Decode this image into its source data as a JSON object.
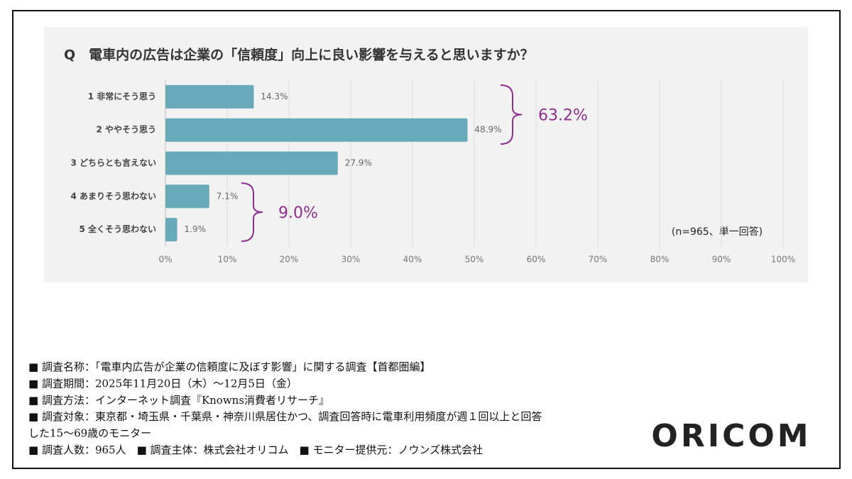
{
  "chart_data": {
    "type": "bar",
    "orientation": "horizontal",
    "title": "Q　電車内の広告は企業の「信頼度」向上に良い影響を与えると思いますか？",
    "categories": [
      "1 非常にそう思う",
      "2 ややそう思う",
      "3 どちらとも言えない",
      "4 あまりそう思わない",
      "5 全くそう思わない"
    ],
    "values": [
      14.3,
      48.9,
      27.9,
      7.1,
      1.9
    ],
    "value_labels": [
      "14.3%",
      "48.9%",
      "27.9%",
      "7.1%",
      "1.9%"
    ],
    "color": "#67aab9",
    "xlim": [
      0,
      100
    ],
    "xticks": [
      {
        "value": 0,
        "label": "0%"
      },
      {
        "value": 10,
        "label": "10%"
      },
      {
        "value": 20,
        "label": "20%"
      },
      {
        "value": 30,
        "label": "30%"
      },
      {
        "value": 40,
        "label": "40%"
      },
      {
        "value": 50,
        "label": "50%"
      },
      {
        "value": 60,
        "label": "60%"
      },
      {
        "value": 70,
        "label": "70%"
      },
      {
        "value": 80,
        "label": "80%"
      },
      {
        "value": 90,
        "label": "90%"
      },
      {
        "value": 100,
        "label": "100%"
      }
    ],
    "grid": true,
    "annotations": [
      "63.2%",
      "9.0%"
    ],
    "annotation_color": "#8e2f8e",
    "note": "(n=965、単一回答)"
  },
  "footer": {
    "lines": [
      "■ 調査名称：「電車内広告が企業の信頼度に及ぼす影響」に関する調査【首都圏編】",
      "■ 調査期間：2025年11月20日（木）～12月5日（金）",
      "■ 調査方法：インターネット調査『Knowns消費者リサーチ』",
      "■ 調査対象：東京都・埼玉県・千葉県・神奈川県居住かつ、調査回答時に電車利用頻度が週１回以上と回答",
      "した15～69歳のモニター",
      "■ 調査人数：965人　■ 調査主体：株式会社オリコム　■ モニター提供元：ノウンズ株式会社"
    ]
  },
  "logo": "ORICOM"
}
